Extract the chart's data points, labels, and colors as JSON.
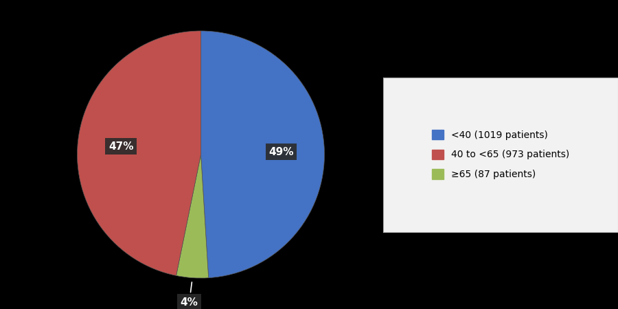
{
  "slices_ordered": [
    1019,
    87,
    973
  ],
  "colors_ordered": [
    "#4472C4",
    "#9BBB59",
    "#C0504D"
  ],
  "pct_labels_ordered": [
    "49%",
    "4%",
    "47%"
  ],
  "legend_labels": [
    "<40 (1019 patients)",
    "40 to <65 (973 patients)",
    "≥65 (87 patients)"
  ],
  "legend_colors": [
    "#4472C4",
    "#C0504D",
    "#9BBB59"
  ],
  "background_color": "#000000",
  "legend_bg": "#F2F2F2",
  "label_box_color": "#2b2b2b",
  "startangle": 90,
  "counterclock": false
}
